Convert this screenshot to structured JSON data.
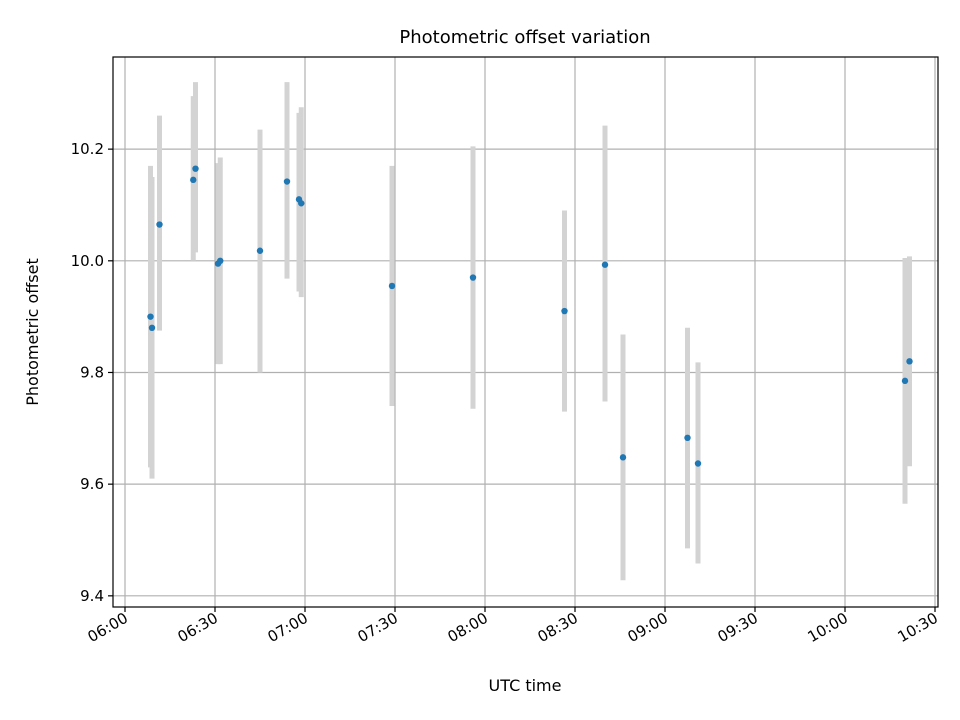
{
  "chart_data": {
    "type": "scatter",
    "title": "Photometric offset variation",
    "xlabel": "UTC time",
    "ylabel": "Photometric offset",
    "x_ticks": [
      "06:00",
      "06:30",
      "07:00",
      "07:30",
      "08:00",
      "08:30",
      "09:00",
      "09:30",
      "10:00",
      "10:30"
    ],
    "y_ticks": [
      "9.4",
      "9.6",
      "9.8",
      "10.0",
      "10.2"
    ],
    "xlim": [
      "05:56",
      "10:31"
    ],
    "ylim": [
      9.38,
      10.365
    ],
    "grid": true,
    "colors": {
      "point": "#1f77b4",
      "errorbar": "#d3d3d3",
      "grid": "#b0b0b0"
    },
    "points": [
      {
        "t": "06:08:30",
        "y": 9.9,
        "lo": 9.63,
        "hi": 10.17
      },
      {
        "t": "06:09:00",
        "y": 9.88,
        "lo": 9.61,
        "hi": 10.15
      },
      {
        "t": "06:11:30",
        "y": 10.065,
        "lo": 9.875,
        "hi": 10.26
      },
      {
        "t": "06:22:45",
        "y": 10.145,
        "lo": 10.0,
        "hi": 10.295
      },
      {
        "t": "06:23:30",
        "y": 10.165,
        "lo": 10.015,
        "hi": 10.32
      },
      {
        "t": "06:31:00",
        "y": 9.995,
        "lo": 9.815,
        "hi": 10.175
      },
      {
        "t": "06:31:45",
        "y": 10.0,
        "lo": 9.815,
        "hi": 10.185
      },
      {
        "t": "06:45:00",
        "y": 10.018,
        "lo": 9.8,
        "hi": 10.235
      },
      {
        "t": "06:54:00",
        "y": 10.142,
        "lo": 9.968,
        "hi": 10.32
      },
      {
        "t": "06:58:00",
        "y": 10.11,
        "lo": 9.945,
        "hi": 10.265
      },
      {
        "t": "06:58:45",
        "y": 10.103,
        "lo": 9.935,
        "hi": 10.275
      },
      {
        "t": "07:29:00",
        "y": 9.955,
        "lo": 9.74,
        "hi": 10.17
      },
      {
        "t": "07:56:00",
        "y": 9.97,
        "lo": 9.735,
        "hi": 10.205
      },
      {
        "t": "08:26:30",
        "y": 9.91,
        "lo": 9.73,
        "hi": 10.09
      },
      {
        "t": "08:40:00",
        "y": 9.993,
        "lo": 9.748,
        "hi": 10.242
      },
      {
        "t": "08:46:00",
        "y": 9.648,
        "lo": 9.428,
        "hi": 9.868
      },
      {
        "t": "09:07:30",
        "y": 9.683,
        "lo": 9.485,
        "hi": 9.88
      },
      {
        "t": "09:11:00",
        "y": 9.637,
        "lo": 9.458,
        "hi": 9.818
      },
      {
        "t": "10:20:00",
        "y": 9.785,
        "lo": 9.565,
        "hi": 10.005
      },
      {
        "t": "10:21:30",
        "y": 9.82,
        "lo": 9.632,
        "hi": 10.008
      }
    ]
  }
}
